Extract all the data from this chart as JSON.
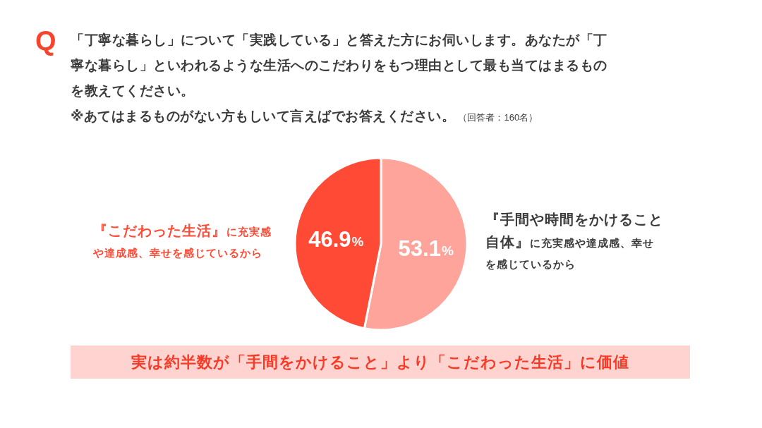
{
  "chart_data": {
    "type": "pie",
    "title": "「丁寧な暮らし」について「実践している」と答えた方にお伺いします。あなたが「丁寧な暮らし」といわれるような生活へのこだわりをもつ理由として最も当てはまるものを教えてください。",
    "subtitle": "※あてはまるものがない方もしいて言えばでお答えください。",
    "annotations": [
      "Q",
      "（回答者：160名）",
      "実は約半数が「手間をかけること」より「こだわった生活」に価値"
    ],
    "categories": [
      "『手間や時間をかけること自体』に充実感や達成感、幸せを感じているから",
      "『こだわった生活』に充実感や達成感、幸せを感じているから"
    ],
    "values": [
      53.1,
      46.9
    ],
    "colors": [
      "#fea49a",
      "#ff4a35"
    ],
    "value_labels": [
      "53.1%",
      "46.9%"
    ]
  }
}
